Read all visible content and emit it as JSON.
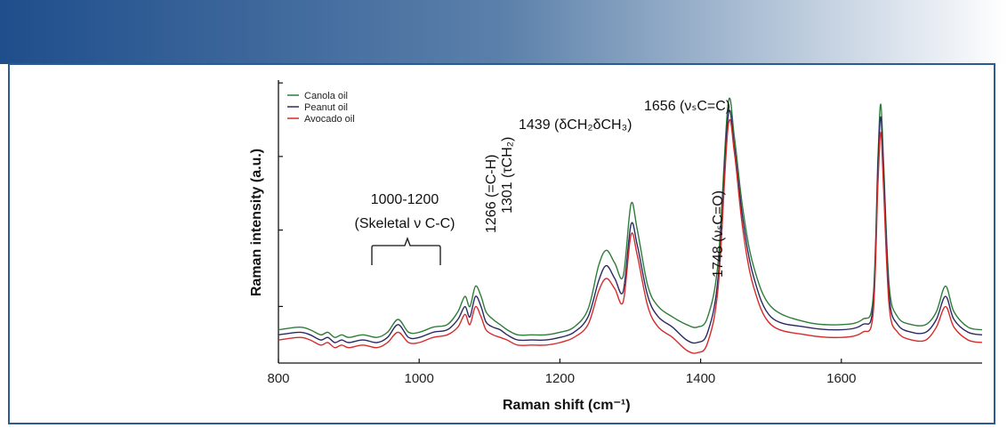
{
  "banner": {
    "color_start": "#1f4e8c",
    "color_end": "#ffffff"
  },
  "frame": {
    "border_color": "#2b5b92"
  },
  "chart_data": {
    "type": "line",
    "xlabel": "Raman shift (cm⁻¹)",
    "ylabel": "Raman intensity (a.u.)",
    "xlim": [
      800,
      1800
    ],
    "ylim": [
      0,
      100
    ],
    "x_ticks": [
      800,
      1000,
      1200,
      1400,
      1600
    ],
    "legend": [
      "Canola oil",
      "Peanut oil",
      "Avocado oil"
    ],
    "legend_position": "top-left",
    "series": [
      {
        "name": "Canola oil",
        "color": "#2e7d3a",
        "offset": 12,
        "x": [
          800,
          830,
          845,
          860,
          870,
          880,
          890,
          900,
          920,
          940,
          955,
          970,
          985,
          1000,
          1020,
          1040,
          1055,
          1065,
          1072,
          1080,
          1088,
          1095,
          1105,
          1115,
          1125,
          1140,
          1160,
          1180,
          1200,
          1220,
          1240,
          1255,
          1266,
          1278,
          1290,
          1301,
          1310,
          1325,
          1340,
          1360,
          1380,
          1395,
          1410,
          1425,
          1439,
          1448,
          1460,
          1475,
          1500,
          1550,
          1600,
          1630,
          1645,
          1652,
          1656,
          1660,
          1668,
          1680,
          1700,
          1720,
          1735,
          1748,
          1760,
          1780,
          1800
        ],
        "y": [
          13,
          14,
          13,
          11,
          12,
          10,
          11,
          10,
          11,
          10,
          12,
          17,
          12,
          12,
          14,
          15,
          20,
          26,
          22,
          30,
          26,
          20,
          17,
          15,
          13,
          11,
          11,
          11,
          12,
          14,
          21,
          38,
          44,
          39,
          34,
          62,
          52,
          30,
          22,
          18,
          15,
          14,
          18,
          40,
          101,
          88,
          60,
          38,
          22,
          16,
          15,
          17,
          25,
          80,
          101,
          78,
          30,
          18,
          15,
          15,
          20,
          30,
          20,
          14,
          13
        ]
      },
      {
        "name": "Peanut oil",
        "color": "#2a2a64",
        "offset": 5,
        "x": [
          800,
          830,
          845,
          860,
          870,
          880,
          890,
          900,
          920,
          940,
          955,
          970,
          985,
          1000,
          1020,
          1040,
          1055,
          1065,
          1072,
          1080,
          1088,
          1095,
          1105,
          1115,
          1125,
          1140,
          1160,
          1180,
          1200,
          1220,
          1240,
          1255,
          1266,
          1278,
          1290,
          1301,
          1310,
          1325,
          1340,
          1360,
          1380,
          1395,
          1410,
          1425,
          1439,
          1448,
          1460,
          1475,
          1500,
          1550,
          1600,
          1630,
          1645,
          1652,
          1656,
          1660,
          1668,
          1680,
          1700,
          1720,
          1735,
          1748,
          1760,
          1780,
          1800
        ],
        "y": [
          11,
          12,
          11,
          9,
          10,
          8,
          9,
          8,
          9,
          8,
          10,
          15,
          10,
          10,
          12,
          13,
          17,
          22,
          18,
          26,
          22,
          16,
          14,
          13,
          11,
          9,
          9,
          9,
          10,
          12,
          18,
          32,
          38,
          33,
          28,
          54,
          46,
          26,
          18,
          14,
          9,
          8,
          12,
          34,
          96,
          84,
          56,
          34,
          18,
          14,
          13,
          15,
          22,
          76,
          96,
          74,
          26,
          15,
          12,
          12,
          17,
          26,
          17,
          12,
          11
        ]
      },
      {
        "name": "Avocado oil",
        "color": "#d62b2b",
        "offset": 0,
        "x": [
          800,
          830,
          845,
          860,
          870,
          880,
          890,
          900,
          920,
          940,
          955,
          970,
          985,
          1000,
          1020,
          1040,
          1055,
          1065,
          1072,
          1080,
          1088,
          1095,
          1105,
          1115,
          1125,
          1140,
          1160,
          1180,
          1200,
          1220,
          1240,
          1255,
          1266,
          1278,
          1290,
          1301,
          1310,
          1325,
          1340,
          1360,
          1380,
          1395,
          1410,
          1425,
          1439,
          1448,
          1460,
          1475,
          1500,
          1550,
          1600,
          1630,
          1645,
          1652,
          1656,
          1660,
          1668,
          1680,
          1700,
          1720,
          1735,
          1748,
          1760,
          1780,
          1800
        ],
        "y": [
          9,
          10,
          9,
          7,
          8,
          6,
          7,
          6,
          7,
          6,
          8,
          12,
          8,
          8,
          10,
          11,
          14,
          19,
          15,
          22,
          18,
          13,
          11,
          10,
          9,
          7,
          7,
          7,
          8,
          10,
          15,
          28,
          33,
          29,
          24,
          50,
          42,
          22,
          14,
          10,
          5,
          4,
          8,
          30,
          92,
          82,
          52,
          30,
          15,
          11,
          10,
          12,
          19,
          70,
          90,
          68,
          22,
          12,
          9,
          9,
          14,
          22,
          14,
          9,
          8
        ]
      }
    ],
    "annotations": [
      {
        "text": "1000-1200",
        "x": 1100
      },
      {
        "text": "(Skeletal ν C-C)",
        "x": 1100
      },
      {
        "text": "1266 (=C-H)",
        "x": 1266,
        "rotated": true
      },
      {
        "text": "1301 (τCH₂)",
        "x": 1301,
        "rotated": true
      },
      {
        "text": "1439 (δCH₂δCH₃)",
        "x": 1439
      },
      {
        "text": "1656 (νₛC=C)",
        "x": 1656
      },
      {
        "text": "1748 (νₛC=O)",
        "x": 1748,
        "rotated": true
      }
    ]
  }
}
